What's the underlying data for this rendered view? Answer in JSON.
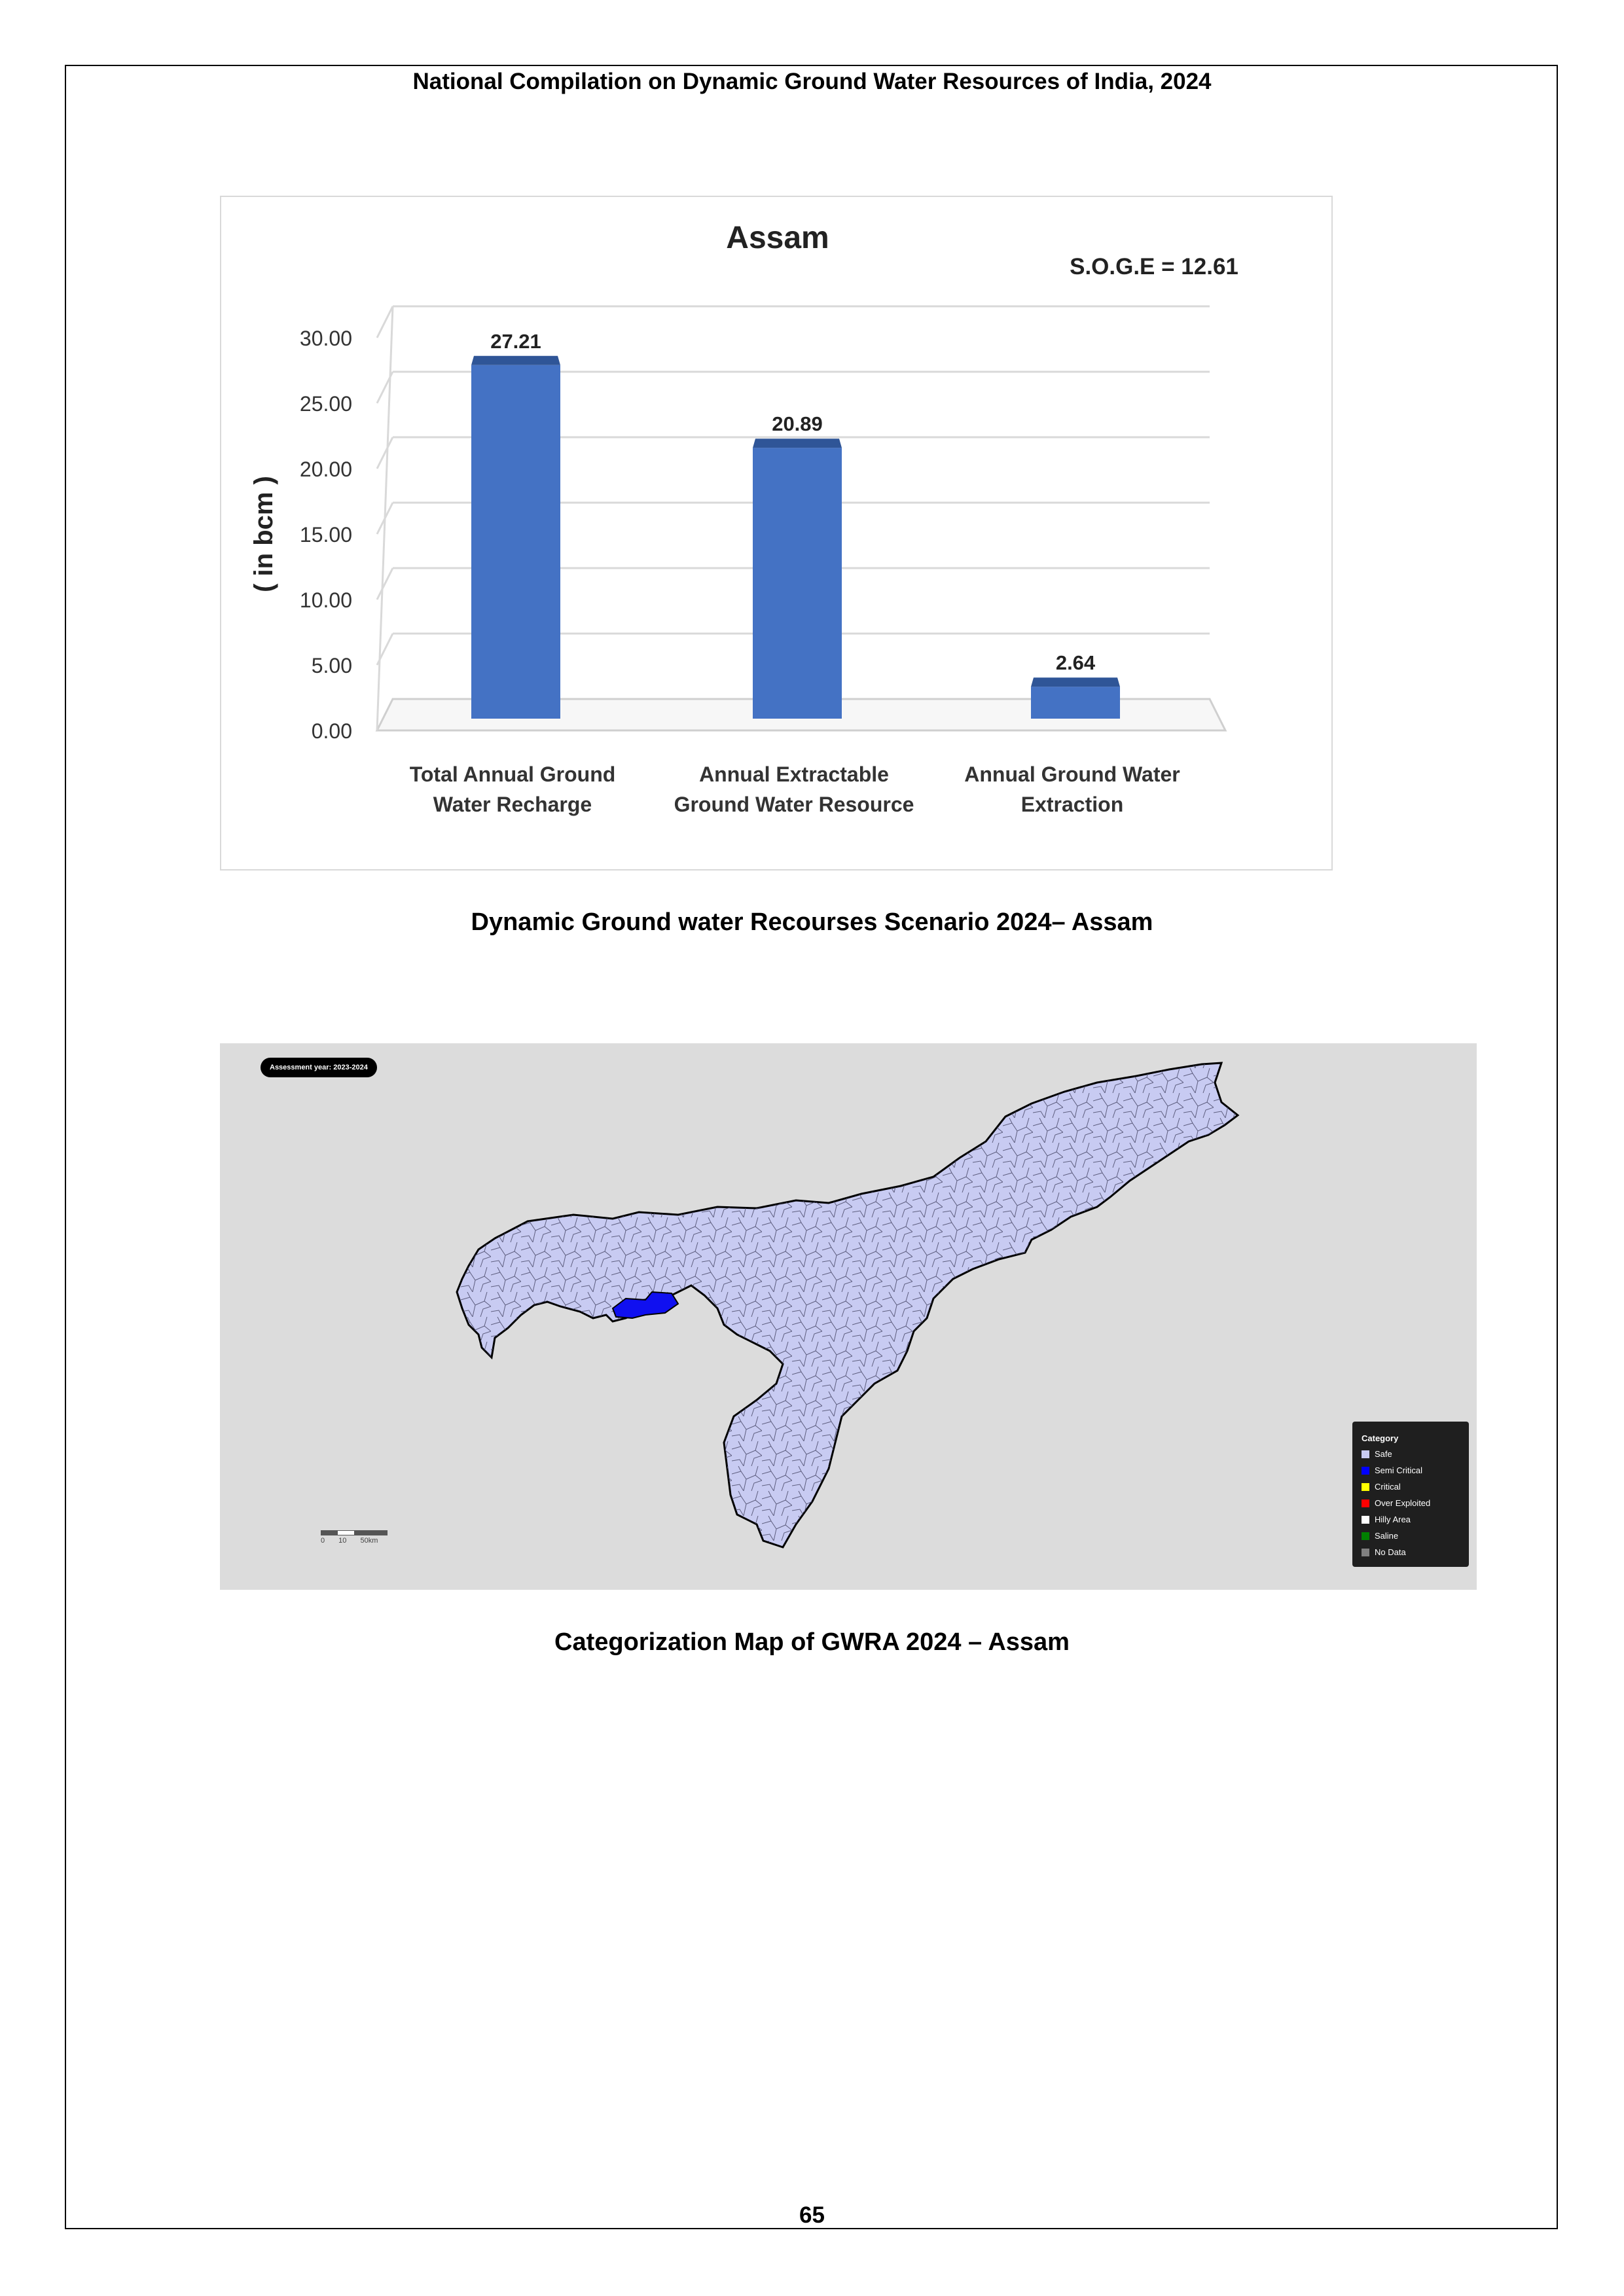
{
  "header": {
    "title": "National Compilation on Dynamic Ground Water Resources of India, 2024"
  },
  "chart_data": {
    "type": "bar",
    "title": "Assam",
    "annotation": "S.O.G.E = 12.61",
    "ylabel": "( in bcm )",
    "ylim": [
      0,
      30
    ],
    "yticks": [
      "0.00",
      "5.00",
      "10.00",
      "15.00",
      "20.00",
      "25.00",
      "30.00"
    ],
    "categories": [
      [
        "Total Annual  Ground",
        "Water Recharge"
      ],
      [
        "Annual Extractable",
        "Ground Water Resource"
      ],
      [
        "Annual Ground Water",
        "Extraction"
      ]
    ],
    "values": [
      27.21,
      20.89,
      2.64
    ],
    "data_labels": [
      "27.21",
      "20.89",
      "2.64"
    ],
    "grid": true,
    "colors": {
      "bar": "#4472C4",
      "bar_top": "#2F5597",
      "grid": "#d9d9d9"
    }
  },
  "captions": {
    "chart": "Dynamic Ground water Recourses Scenario 2024– Assam",
    "map": "Categorization Map of GWRA 2024 – Assam"
  },
  "map": {
    "assessment_label": "Assessment year: 2023-2024",
    "legend": {
      "title": "Category",
      "items": [
        {
          "label": "Safe",
          "color": "#c8cbf2"
        },
        {
          "label": "Semi Critical",
          "color": "#0000ff"
        },
        {
          "label": "Critical",
          "color": "#ffff00"
        },
        {
          "label": "Over Exploited",
          "color": "#ff0000"
        },
        {
          "label": "Hilly Area",
          "color": "#ffffff"
        },
        {
          "label": "Saline",
          "color": "#008000"
        },
        {
          "label": "No Data",
          "color": "#808080"
        }
      ]
    },
    "scale_label": "0 10 50km",
    "colors": {
      "safe": "#c8cbf2",
      "semi_critical": "#1010f0",
      "background": "#dcdcdc"
    }
  },
  "page_number": "65"
}
